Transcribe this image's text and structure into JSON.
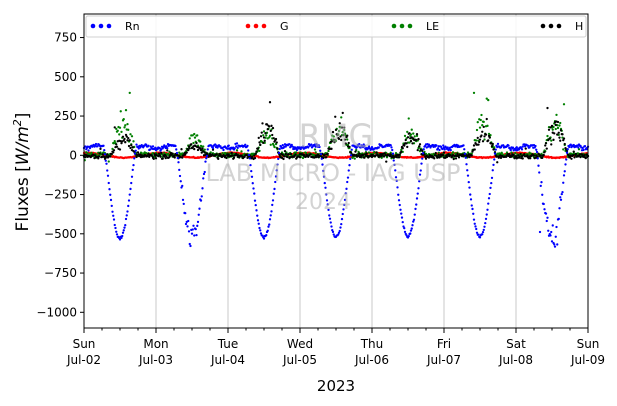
{
  "chart_data": {
    "type": "scatter",
    "xlabel": "2023",
    "ylabel": "Fluxes [W/m²]",
    "ylabel_parts": {
      "main": "Fluxes [",
      "var": "W/m",
      "sup": "2",
      "close": "]"
    },
    "x_range": [
      "2023-07-02T00:00",
      "2023-07-09T00:00"
    ],
    "ylim": [
      -1100,
      900
    ],
    "yticks": [
      -1000,
      -750,
      -500,
      -250,
      0,
      250,
      500,
      750
    ],
    "xticks": [
      {
        "date": "2023-07-02",
        "day": "Sun",
        "label": "Jul-02"
      },
      {
        "date": "2023-07-03",
        "day": "Mon",
        "label": "Jul-03"
      },
      {
        "date": "2023-07-04",
        "day": "Tue",
        "label": "Jul-04"
      },
      {
        "date": "2023-07-05",
        "day": "Wed",
        "label": "Jul-05"
      },
      {
        "date": "2023-07-06",
        "day": "Thu",
        "label": "Jul-06"
      },
      {
        "date": "2023-07-07",
        "day": "Fri",
        "label": "Jul-07"
      },
      {
        "date": "2023-07-08",
        "day": "Sat",
        "label": "Jul-08"
      },
      {
        "date": "2023-07-09",
        "day": "Sun",
        "label": "Jul-09"
      }
    ],
    "grid": "x-major",
    "legend_position": "top",
    "series": [
      {
        "name": "Rn",
        "color": "#0000ff",
        "description": "Net radiation; nighttime ~+50, daytime troughs near noon",
        "daily_trough": [
          {
            "date": "2023-07-02",
            "min": -530
          },
          {
            "date": "2023-07-03",
            "min": -670
          },
          {
            "date": "2023-07-04",
            "min": -525
          },
          {
            "date": "2023-07-05",
            "min": -520
          },
          {
            "date": "2023-07-06",
            "min": -515
          },
          {
            "date": "2023-07-07",
            "min": -520
          },
          {
            "date": "2023-07-08",
            "min": -590
          }
        ],
        "night_level": 60
      },
      {
        "name": "G",
        "color": "#ff0000",
        "description": "Ground heat flux; small diurnal oscillation",
        "daily_amplitude": 15
      },
      {
        "name": "LE",
        "color": "#008000",
        "description": "Latent heat flux; afternoon peaks",
        "daily_peak": [
          {
            "date": "2023-07-02",
            "max": 420
          },
          {
            "date": "2023-07-03",
            "max": 190
          },
          {
            "date": "2023-07-04",
            "max": 250
          },
          {
            "date": "2023-07-05",
            "max": 360
          },
          {
            "date": "2023-07-06",
            "max": 250
          },
          {
            "date": "2023-07-07",
            "max": 410
          },
          {
            "date": "2023-07-08",
            "max": 370
          }
        ]
      },
      {
        "name": "H",
        "color": "#000000",
        "description": "Sensible heat flux; afternoon peaks",
        "daily_peak": [
          {
            "date": "2023-07-02",
            "max": 190
          },
          {
            "date": "2023-07-03",
            "max": 110
          },
          {
            "date": "2023-07-04",
            "max": 360
          },
          {
            "date": "2023-07-05",
            "max": 300
          },
          {
            "date": "2023-07-06",
            "max": 210
          },
          {
            "date": "2023-07-07",
            "max": 260
          },
          {
            "date": "2023-07-08",
            "max": 350
          }
        ]
      }
    ]
  },
  "watermark": {
    "line1": "RMG",
    "line2": "LAB MICRO - IAG USP",
    "line3": "2024"
  }
}
